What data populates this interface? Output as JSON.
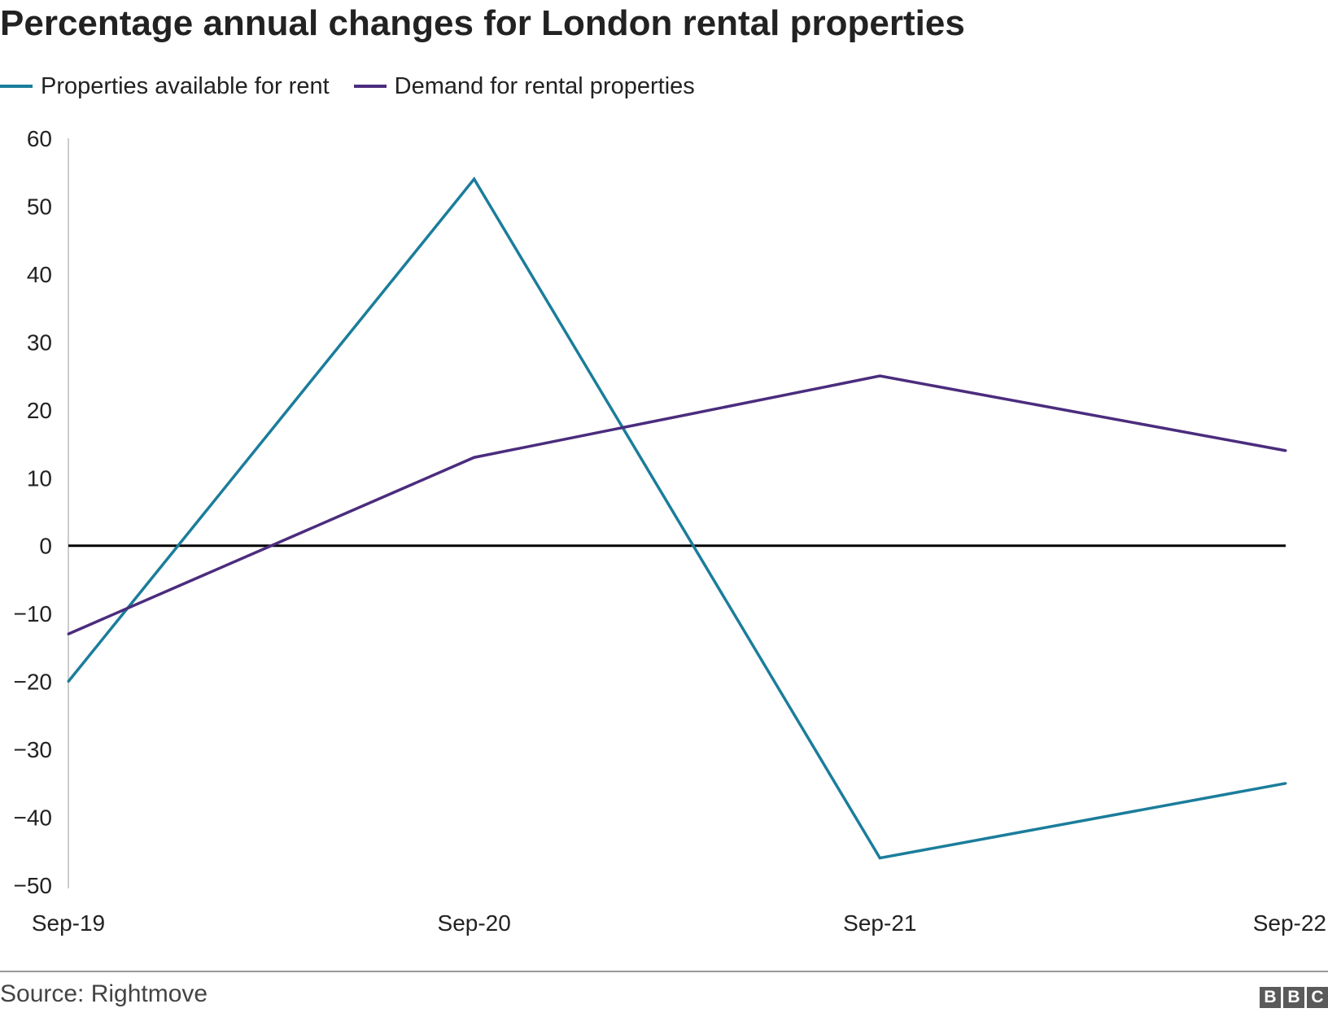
{
  "chart_data": {
    "type": "line",
    "title": "Percentage annual changes for London rental properties",
    "categories": [
      "Sep-19",
      "Sep-20",
      "Sep-21",
      "Sep-22"
    ],
    "series": [
      {
        "name": "Properties available for rent",
        "color": "#1b7d9b",
        "values": [
          -20,
          54,
          -46,
          -35
        ]
      },
      {
        "name": "Demand for rental properties",
        "color": "#4b2c7d",
        "values": [
          -13,
          13,
          25,
          14
        ]
      }
    ],
    "yticks": [
      "60",
      "50",
      "40",
      "30",
      "20",
      "10",
      "0",
      "−10",
      "−20",
      "−30",
      "−40",
      "−50"
    ],
    "ylim": [
      -50,
      60
    ],
    "zero_line_color": "#000000",
    "grid": false,
    "legend_position": "top-left",
    "source": "Source: Rightmove"
  },
  "branding": {
    "logo_letters": [
      "B",
      "B",
      "C"
    ]
  }
}
